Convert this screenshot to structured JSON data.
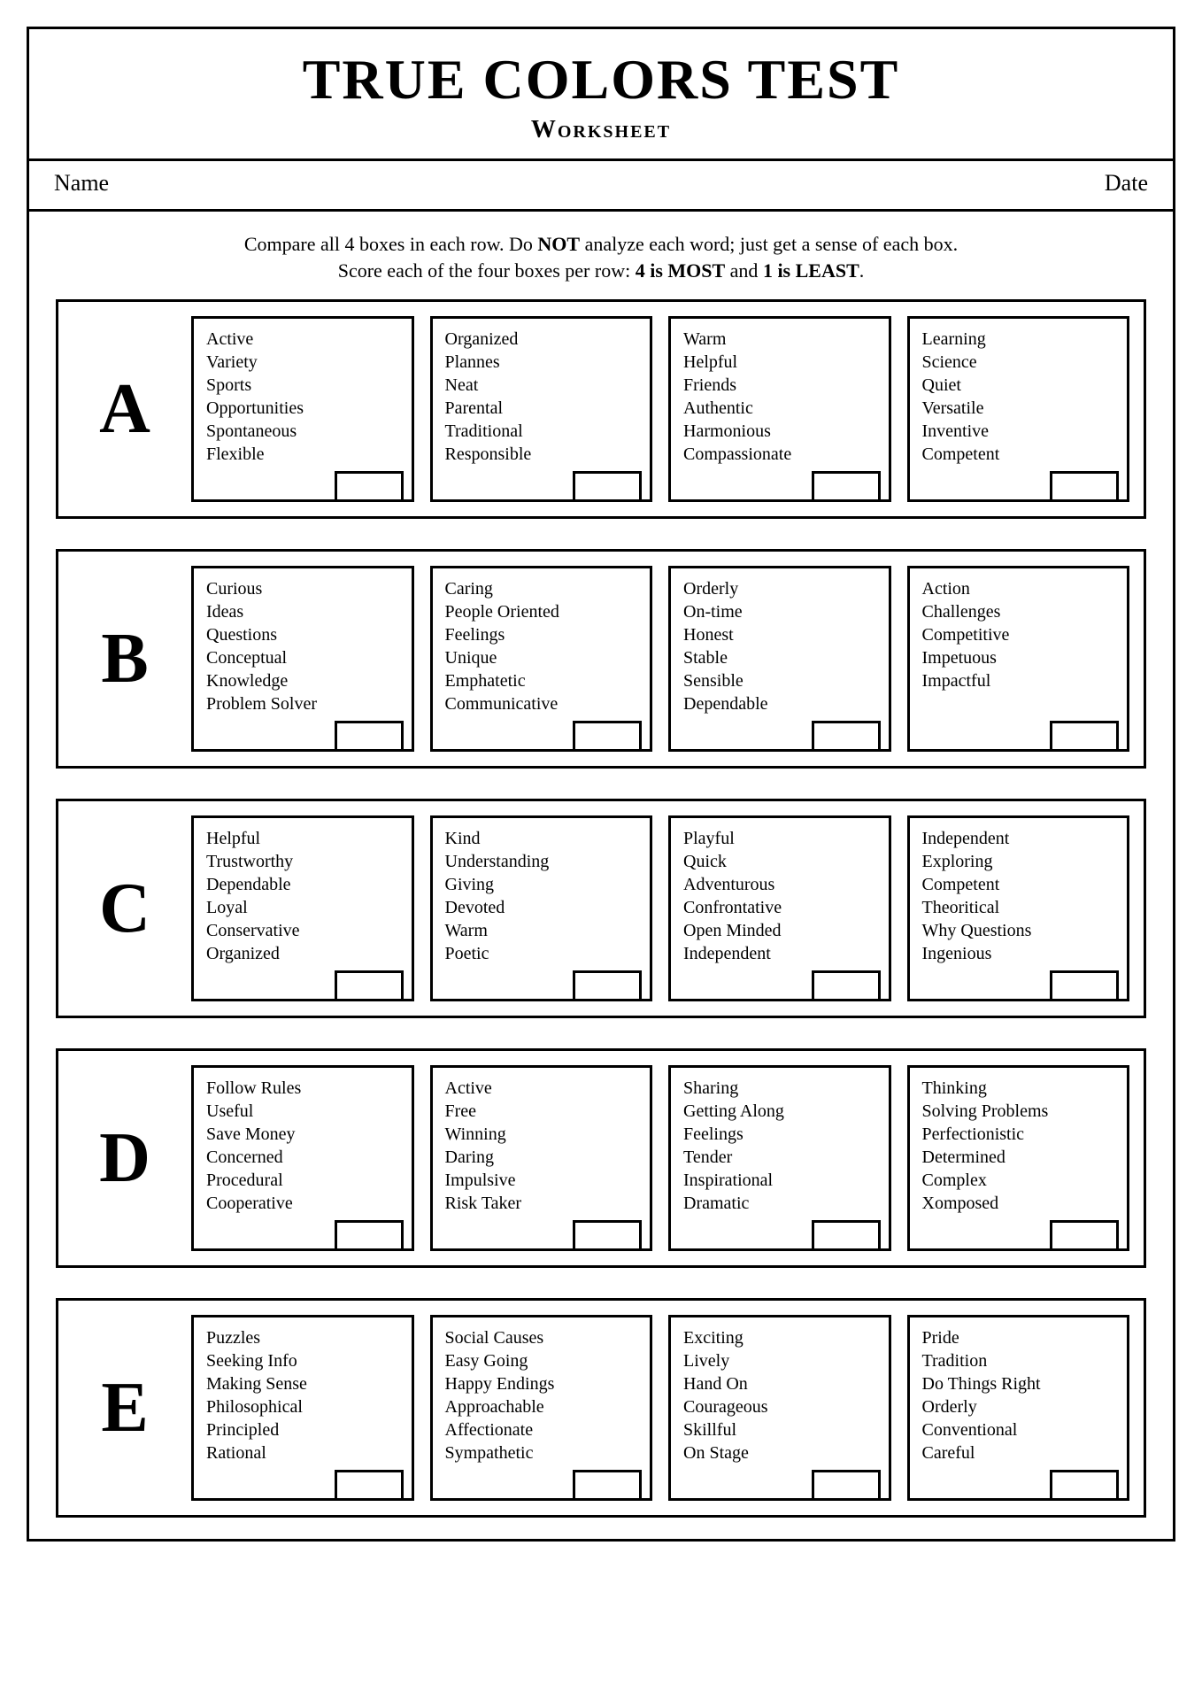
{
  "title": "TRUE COLORS TEST",
  "subtitle": "Worksheet",
  "name_label": "Name",
  "date_label": "Date",
  "instructions": {
    "line1_a": "Compare all 4 boxes in each row. Do ",
    "line1_b": "NOT",
    "line1_c": " analyze each word; just get a sense of each box.",
    "line2_a": "Score each of the four boxes per row: ",
    "line2_b": "4 is MOST",
    "line2_c": " and ",
    "line2_d": "1 is LEAST",
    "line2_e": "."
  },
  "rows": [
    {
      "label": "A",
      "boxes": [
        [
          "Active",
          "Variety",
          "Sports",
          "Opportunities",
          "Spontaneous",
          "Flexible"
        ],
        [
          "Organized",
          "Plannes",
          "Neat",
          "Parental",
          "Traditional",
          "Responsible"
        ],
        [
          "Warm",
          "Helpful",
          "Friends",
          "Authentic",
          "Harmonious",
          "Compassionate"
        ],
        [
          "Learning",
          "Science",
          "Quiet",
          "Versatile",
          "Inventive",
          "Competent"
        ]
      ]
    },
    {
      "label": "B",
      "boxes": [
        [
          "Curious",
          "Ideas",
          "Questions",
          "Conceptual",
          "Knowledge",
          "Problem Solver"
        ],
        [
          "Caring",
          "People Oriented",
          "Feelings",
          "Unique",
          "Emphatetic",
          "Communicative"
        ],
        [
          "Orderly",
          "On-time",
          "Honest",
          "Stable",
          "Sensible",
          "Dependable"
        ],
        [
          "Action",
          "Challenges",
          "Competitive",
          "Impetuous",
          "Impactful"
        ]
      ]
    },
    {
      "label": "C",
      "boxes": [
        [
          "Helpful",
          "Trustworthy",
          "Dependable",
          "Loyal",
          "Conservative",
          "Organized"
        ],
        [
          "Kind",
          "Understanding",
          "Giving",
          "Devoted",
          "Warm",
          "Poetic"
        ],
        [
          "Playful",
          "Quick",
          "Adventurous",
          "Confrontative",
          "Open Minded",
          "Independent"
        ],
        [
          "Independent",
          "Exploring",
          "Competent",
          "Theoritical",
          "Why Questions",
          "Ingenious"
        ]
      ]
    },
    {
      "label": "D",
      "boxes": [
        [
          "Follow Rules",
          "Useful",
          "Save Money",
          "Concerned",
          "Procedural",
          "Cooperative"
        ],
        [
          "Active",
          "Free",
          "Winning",
          "Daring",
          "Impulsive",
          "Risk Taker"
        ],
        [
          "Sharing",
          "Getting Along",
          "Feelings",
          "Tender",
          "Inspirational",
          "Dramatic"
        ],
        [
          "Thinking",
          "Solving Problems",
          "Perfectionistic",
          "Determined",
          "Complex",
          "Xomposed"
        ]
      ]
    },
    {
      "label": "E",
      "boxes": [
        [
          "Puzzles",
          "Seeking Info",
          "Making Sense",
          "Philosophical",
          "Principled",
          "Rational"
        ],
        [
          "Social Causes",
          "Easy Going",
          "Happy Endings",
          "Approachable",
          "Affectionate",
          "Sympathetic"
        ],
        [
          "Exciting",
          "Lively",
          "Hand On",
          "Courageous",
          "Skillful",
          "On Stage"
        ],
        [
          "Pride",
          "Tradition",
          "Do Things Right",
          "Orderly",
          "Conventional",
          "Careful"
        ]
      ]
    }
  ],
  "colors": {
    "border": "#000000",
    "background": "#ffffff",
    "text": "#000000"
  }
}
